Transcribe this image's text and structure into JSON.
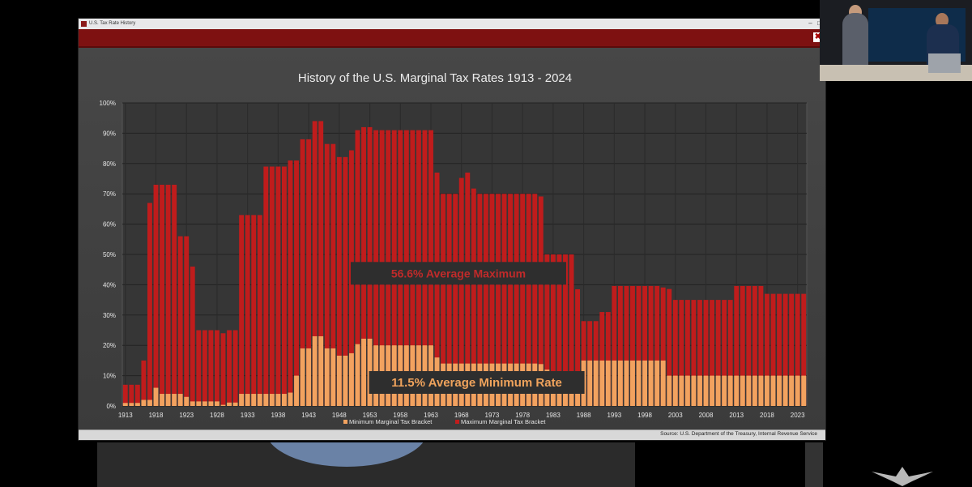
{
  "window": {
    "title": "U.S. Tax Rate History"
  },
  "colors": {
    "max_bar": "#c01c1c",
    "min_bar": "#f2a25f",
    "background": "#3e3e3e",
    "ribbon": "#7e1111",
    "annotation_bg": "#2e2e2e",
    "annotation_max_text": "#c02a2a",
    "annotation_min_text": "#f0a35c"
  },
  "icons": {
    "app": "window-app-icon",
    "corner": "ribbon-corner-icon",
    "logo": "presenter-logo-icon"
  },
  "chart_data": {
    "type": "bar",
    "title": "History of the U.S. Marginal Tax Rates 1913 - 2024",
    "xlabel": "",
    "ylabel": "",
    "ylim": [
      0,
      100
    ],
    "y_tick_labels": [
      "0%",
      "10%",
      "20%",
      "30%",
      "40%",
      "50%",
      "60%",
      "70%",
      "80%",
      "90%",
      "100%"
    ],
    "x_tick_labels": [
      "1913",
      "1918",
      "1923",
      "1928",
      "1933",
      "1938",
      "1943",
      "1948",
      "1953",
      "1958",
      "1963",
      "1968",
      "1973",
      "1978",
      "1983",
      "1988",
      "1993",
      "1998",
      "2003",
      "2008",
      "2013",
      "2018",
      "2023"
    ],
    "categories": [
      1913,
      1914,
      1915,
      1916,
      1917,
      1918,
      1919,
      1920,
      1921,
      1922,
      1923,
      1924,
      1925,
      1926,
      1927,
      1928,
      1929,
      1930,
      1931,
      1932,
      1933,
      1934,
      1935,
      1936,
      1937,
      1938,
      1939,
      1940,
      1941,
      1942,
      1943,
      1944,
      1945,
      1946,
      1947,
      1948,
      1949,
      1950,
      1951,
      1952,
      1953,
      1954,
      1955,
      1956,
      1957,
      1958,
      1959,
      1960,
      1961,
      1962,
      1963,
      1964,
      1965,
      1966,
      1967,
      1968,
      1969,
      1970,
      1971,
      1972,
      1973,
      1974,
      1975,
      1976,
      1977,
      1978,
      1979,
      1980,
      1981,
      1982,
      1983,
      1984,
      1985,
      1986,
      1987,
      1988,
      1989,
      1990,
      1991,
      1992,
      1993,
      1994,
      1995,
      1996,
      1997,
      1998,
      1999,
      2000,
      2001,
      2002,
      2003,
      2004,
      2005,
      2006,
      2007,
      2008,
      2009,
      2010,
      2011,
      2012,
      2013,
      2014,
      2015,
      2016,
      2017,
      2018,
      2019,
      2020,
      2021,
      2022,
      2023,
      2024
    ],
    "series": [
      {
        "name": "Maximum Marginal Tax Bracket",
        "values": [
          7,
          7,
          7,
          15,
          67,
          73,
          73,
          73,
          73,
          56,
          56,
          46,
          25,
          25,
          25,
          25,
          24,
          25,
          25,
          63,
          63,
          63,
          63,
          79,
          79,
          79,
          79,
          81,
          81,
          88,
          88,
          94,
          94,
          86.45,
          86.45,
          82.13,
          82.13,
          84.36,
          91,
          92,
          92,
          91,
          91,
          91,
          91,
          91,
          91,
          91,
          91,
          91,
          91,
          77,
          70,
          70,
          70,
          75.25,
          77,
          71.75,
          70,
          70,
          70,
          70,
          70,
          70,
          70,
          70,
          70,
          70,
          69.13,
          50,
          50,
          50,
          50,
          50,
          38.5,
          28,
          28,
          28,
          31,
          31,
          39.6,
          39.6,
          39.6,
          39.6,
          39.6,
          39.6,
          39.6,
          39.6,
          39.1,
          38.6,
          35,
          35,
          35,
          35,
          35,
          35,
          35,
          35,
          35,
          35,
          39.6,
          39.6,
          39.6,
          39.6,
          39.6,
          37,
          37,
          37,
          37,
          37,
          37,
          37
        ]
      },
      {
        "name": "Minimum Marginal Tax Bracket",
        "values": [
          1,
          1,
          1,
          2,
          2,
          6,
          4,
          4,
          4,
          4,
          3,
          1.5,
          1.5,
          1.5,
          1.5,
          1.5,
          0.375,
          1.125,
          1.125,
          4,
          4,
          4,
          4,
          4,
          4,
          4,
          4,
          4.4,
          10,
          19,
          19,
          23,
          23,
          19,
          19,
          16.6,
          16.6,
          17.4,
          20.4,
          22.2,
          22.2,
          20,
          20,
          20,
          20,
          20,
          20,
          20,
          20,
          20,
          20,
          16,
          14,
          14,
          14,
          14,
          14,
          14,
          14,
          14,
          14,
          14,
          14,
          14,
          14,
          14,
          14,
          14,
          13.825,
          12,
          11,
          11,
          11,
          11,
          11,
          15,
          15,
          15,
          15,
          15,
          15,
          15,
          15,
          15,
          15,
          15,
          15,
          15,
          15,
          10,
          10,
          10,
          10,
          10,
          10,
          10,
          10,
          10,
          10,
          10,
          10,
          10,
          10,
          10,
          10,
          10,
          10,
          10,
          10,
          10,
          10,
          10
        ]
      }
    ],
    "annotations": [
      "56.6% Average Maximum",
      "11.5% Average Minimum Rate"
    ],
    "legend": [
      "Minimum Marginal Tax Bracket",
      "Maximum Marginal Tax Bracket"
    ],
    "legend_position": "bottom-center",
    "grid": true,
    "source": "Source: U.S. Department of the Treasury, Internal Revenue Service"
  }
}
